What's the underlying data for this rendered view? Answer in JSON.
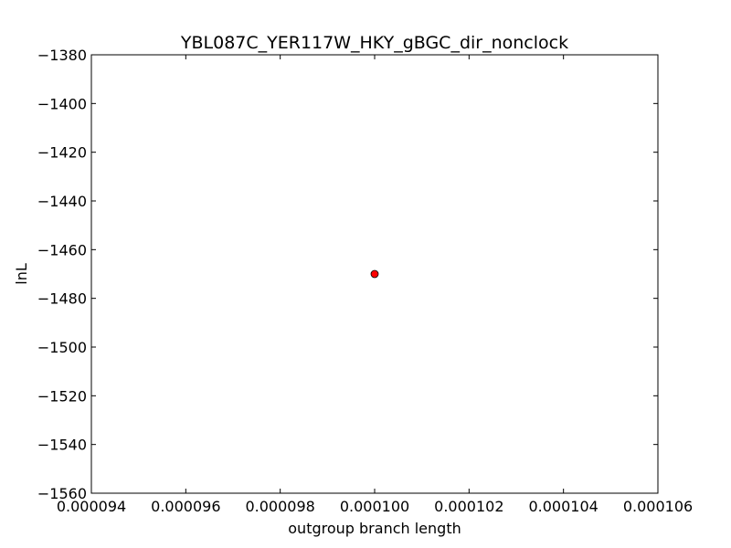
{
  "chart_data": {
    "type": "scatter",
    "title": "YBL087C_YER117W_HKY_gBGC_dir_nonclock",
    "xlabel": "outgroup branch length",
    "ylabel": "lnL",
    "xlim": [
      9.4e-05,
      0.000106
    ],
    "ylim": [
      -1560,
      -1380
    ],
    "x_ticks": [
      9.4e-05,
      9.6e-05,
      9.8e-05,
      0.0001,
      0.000102,
      0.000104,
      0.000106
    ],
    "x_tick_labels": [
      "0.000094",
      "0.000096",
      "0.000098",
      "0.000100",
      "0.000102",
      "0.000104",
      "0.000106"
    ],
    "y_ticks": [
      -1380,
      -1400,
      -1420,
      -1440,
      -1460,
      -1480,
      -1500,
      -1520,
      -1540,
      -1560
    ],
    "y_tick_labels": [
      "−1380",
      "−1400",
      "−1420",
      "−1440",
      "−1460",
      "−1480",
      "−1500",
      "−1520",
      "−1540",
      "−1560"
    ],
    "grid": false,
    "points": [
      {
        "x": 0.0001,
        "y": -1470
      }
    ],
    "marker_color": "#ff0000"
  }
}
